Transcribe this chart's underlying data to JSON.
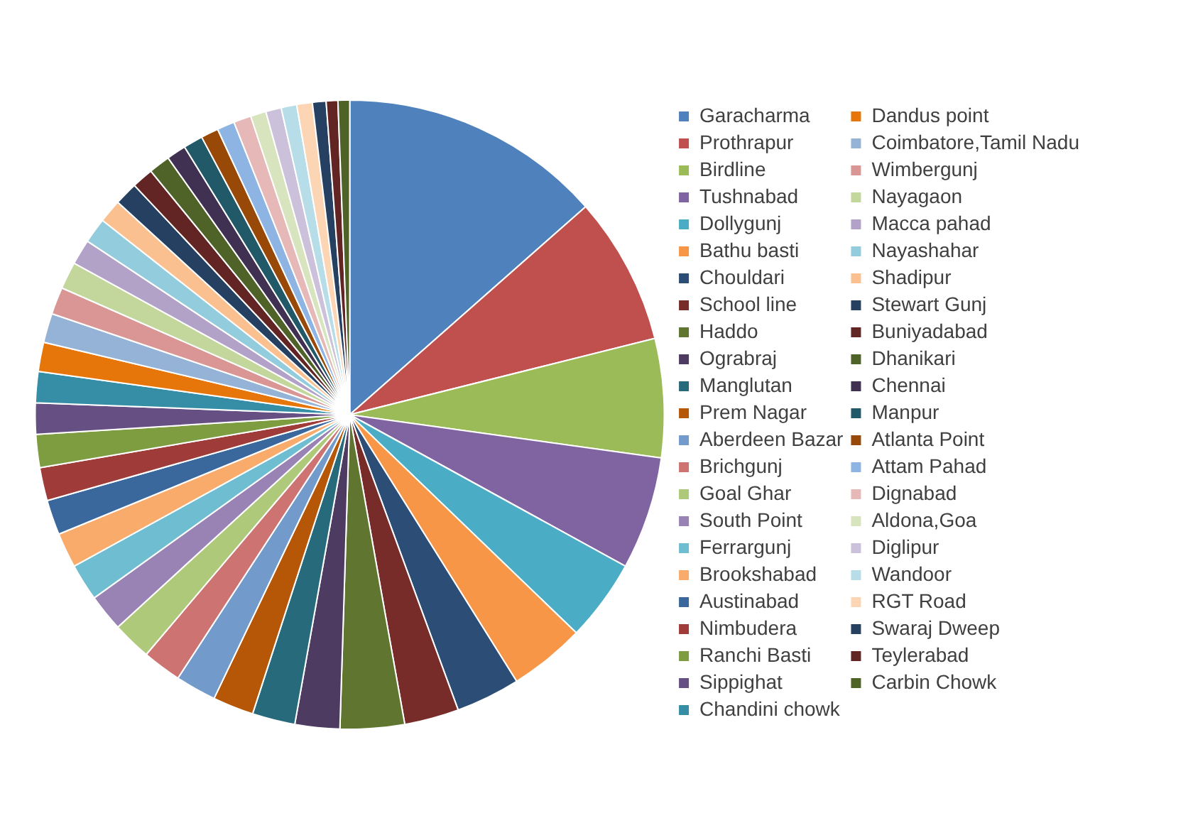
{
  "chart_data": {
    "type": "pie",
    "categories": [
      "Garacharma",
      "Prothrapur",
      "Birdline",
      "Tushnabad",
      "Dollygunj",
      "Bathu basti",
      "Chouldari",
      "School line",
      "Haddo",
      "Ograbraj",
      "Manglutan",
      "Prem Nagar",
      "Aberdeen Bazar",
      "Brichgunj",
      "Goal Ghar",
      "South Point",
      "Ferrargunj",
      "Brookshabad",
      "Austinabad",
      "Nimbudera",
      "Ranchi Basti",
      "Sippighat",
      "Chandini chowk",
      "Dandus point",
      "Coimbatore,Tamil Nadu",
      "Wimbergunj",
      "Nayagaon",
      "Macca pahad",
      "Nayashahar",
      "Shadipur",
      "Stewart Gunj",
      "Buniyadabad",
      "Dhanikari",
      "Chennai",
      "Manpur",
      "Atlanta Point",
      "Attam Pahad",
      "Dignabad",
      "Aldona,Goa",
      "Diglipur",
      "Wandoor",
      "RGT Road",
      "Swaraj Dweep",
      "Teylerabad",
      "Carbin Chowk"
    ],
    "values": [
      13.5,
      7.6,
      6.1,
      5.8,
      4.2,
      3.9,
      3.3,
      2.8,
      3.3,
      2.3,
      2.2,
      2.1,
      2.1,
      2.0,
      2.0,
      1.9,
      1.9,
      1.8,
      1.8,
      1.7,
      1.7,
      1.6,
      1.6,
      1.5,
      1.5,
      1.4,
      1.4,
      1.3,
      1.3,
      1.2,
      1.2,
      1.1,
      1.1,
      1.0,
      1.0,
      0.9,
      0.9,
      0.9,
      0.8,
      0.8,
      0.8,
      0.8,
      0.7,
      0.6,
      0.6
    ],
    "colors": [
      "#4f81bd",
      "#c0504d",
      "#9bbb59",
      "#8064a2",
      "#4bacc6",
      "#f79646",
      "#2c4d75",
      "#772c2a",
      "#5f7530",
      "#4d3b62",
      "#276a7c",
      "#b65708",
      "#729aca",
      "#cd7371",
      "#afc97a",
      "#9983b5",
      "#6fbdd1",
      "#f9ab6b",
      "#3a679c",
      "#9f3b38",
      "#7e9c40",
      "#664f82",
      "#358ea6",
      "#e6750a",
      "#95b3d7",
      "#d99694",
      "#c3d69b",
      "#b3a2c7",
      "#93cddd",
      "#fac090",
      "#254061",
      "#632523",
      "#4f6228",
      "#403152",
      "#215968",
      "#984807",
      "#8eb4e3",
      "#e6b9b8",
      "#d7e4bd",
      "#ccc1da",
      "#b7dee8",
      "#fcd5b5",
      "#254061",
      "#632523",
      "#4f6228"
    ],
    "legend": "right"
  }
}
